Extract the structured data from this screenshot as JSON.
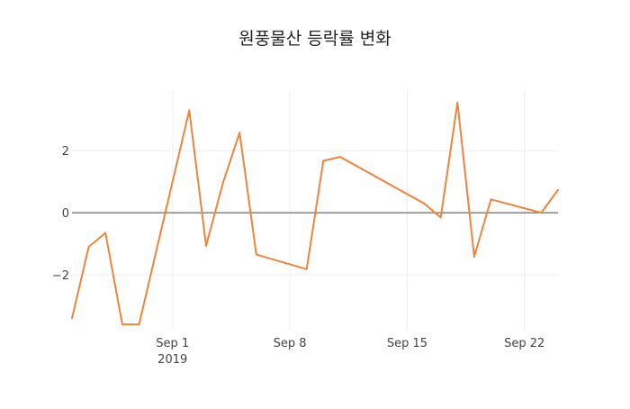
{
  "chart_data": {
    "type": "line",
    "title": "원풍물산 등락률 변화",
    "x_axis": {
      "ticks": [
        {
          "date": "2019-09-01",
          "label": "Sep 1",
          "sublabel": "2019"
        },
        {
          "date": "2019-09-08",
          "label": "Sep 8",
          "sublabel": ""
        },
        {
          "date": "2019-09-15",
          "label": "Sep 15",
          "sublabel": ""
        },
        {
          "date": "2019-09-22",
          "label": "Sep 22",
          "sublabel": ""
        }
      ],
      "range": [
        "2019-08-26",
        "2019-09-24"
      ]
    },
    "y_axis": {
      "ticks": [
        -2,
        0,
        2
      ],
      "tick_labels": [
        "−2",
        "0",
        "2"
      ],
      "range": [
        -3.8,
        3.95
      ]
    },
    "grid": true,
    "series": [
      {
        "color": "#f0843c",
        "points": [
          {
            "x": "2019-08-26",
            "y": -3.4
          },
          {
            "x": "2019-08-27",
            "y": -1.1
          },
          {
            "x": "2019-08-28",
            "y": -0.65
          },
          {
            "x": "2019-08-29",
            "y": -3.6
          },
          {
            "x": "2019-08-30",
            "y": -3.6
          },
          {
            "x": "2019-09-02",
            "y": 3.3
          },
          {
            "x": "2019-09-03",
            "y": -1.07
          },
          {
            "x": "2019-09-04",
            "y": 0.95
          },
          {
            "x": "2019-09-05",
            "y": 2.58
          },
          {
            "x": "2019-09-06",
            "y": -1.35
          },
          {
            "x": "2019-09-09",
            "y": -1.82
          },
          {
            "x": "2019-09-10",
            "y": 1.67
          },
          {
            "x": "2019-09-11",
            "y": 1.8
          },
          {
            "x": "2019-09-16",
            "y": 0.3
          },
          {
            "x": "2019-09-17",
            "y": -0.15
          },
          {
            "x": "2019-09-18",
            "y": 3.55
          },
          {
            "x": "2019-09-19",
            "y": -1.42
          },
          {
            "x": "2019-09-20",
            "y": 0.43
          },
          {
            "x": "2019-09-23",
            "y": 0.0
          },
          {
            "x": "2019-09-24",
            "y": 0.73
          }
        ]
      }
    ]
  }
}
